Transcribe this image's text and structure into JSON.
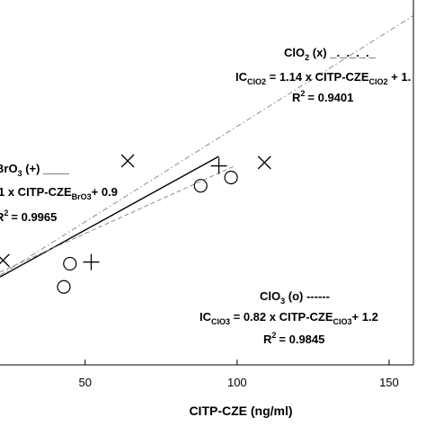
{
  "chart_data": {
    "type": "scatter",
    "xlabel": "CITP-CZE (ng/ml)",
    "x_ticks": [
      "50",
      "100",
      "150"
    ],
    "xlim": [
      22,
      158
    ],
    "ylim": [
      0,
      22
    ],
    "series": [
      {
        "name": "ClO2 (x)",
        "marker": "x",
        "points": [
          [
            23,
            6.3
          ],
          [
            64,
            12.3
          ],
          [
            109,
            12.2
          ]
        ],
        "fit": {
          "slope": 1.14,
          "intercept": 1,
          "style": "dashdot",
          "r2": "R² = 0.9401"
        }
      },
      {
        "name": "BrO3 (+)",
        "marker": "+",
        "points": [
          [
            52,
            6.2
          ],
          [
            94,
            12.0
          ]
        ],
        "fit": {
          "slope": 1,
          "intercept": 0.9,
          "style": "solid",
          "r2": "R² = 0.9965"
        }
      },
      {
        "name": "ClO3 (o)",
        "marker": "o",
        "points": [
          [
            43,
            4.7
          ],
          [
            45,
            6.1
          ],
          [
            88,
            10.8
          ],
          [
            98,
            11.3
          ]
        ],
        "fit": {
          "slope": 0.82,
          "intercept": 1.2,
          "style": "dashed",
          "r2": "R² = 0.9845"
        }
      }
    ],
    "annotations": {
      "clo2": {
        "title": "ClO",
        "title_sub": "2",
        "title_tail": " (x) _._._._._",
        "eq_a": "IC",
        "eq_a_sub": "ClO2",
        "eq_b": " = 1.14 x CITP-CZE",
        "eq_b_sub": "ClO2",
        "eq_c": " + 1.",
        "r2": "= 0.9401"
      },
      "bro3": {
        "title": "BrO",
        "title_sub": "3",
        "title_tail": " (+) ____",
        "eq_b": "1 x CITP-CZE",
        "eq_b_sub": "BrO3",
        "eq_c": "+ 0.9",
        "r2": "= 0.9965"
      },
      "clo3": {
        "title": "ClO",
        "title_sub": "3",
        "title_tail": " (o) ------",
        "eq_a": "IC",
        "eq_a_sub": "ClO3",
        "eq_b": " = 0.82 x CITP-CZE",
        "eq_b_sub": "ClO3",
        "eq_c": "+ 1.2",
        "r2": "= 0.9845"
      }
    }
  }
}
